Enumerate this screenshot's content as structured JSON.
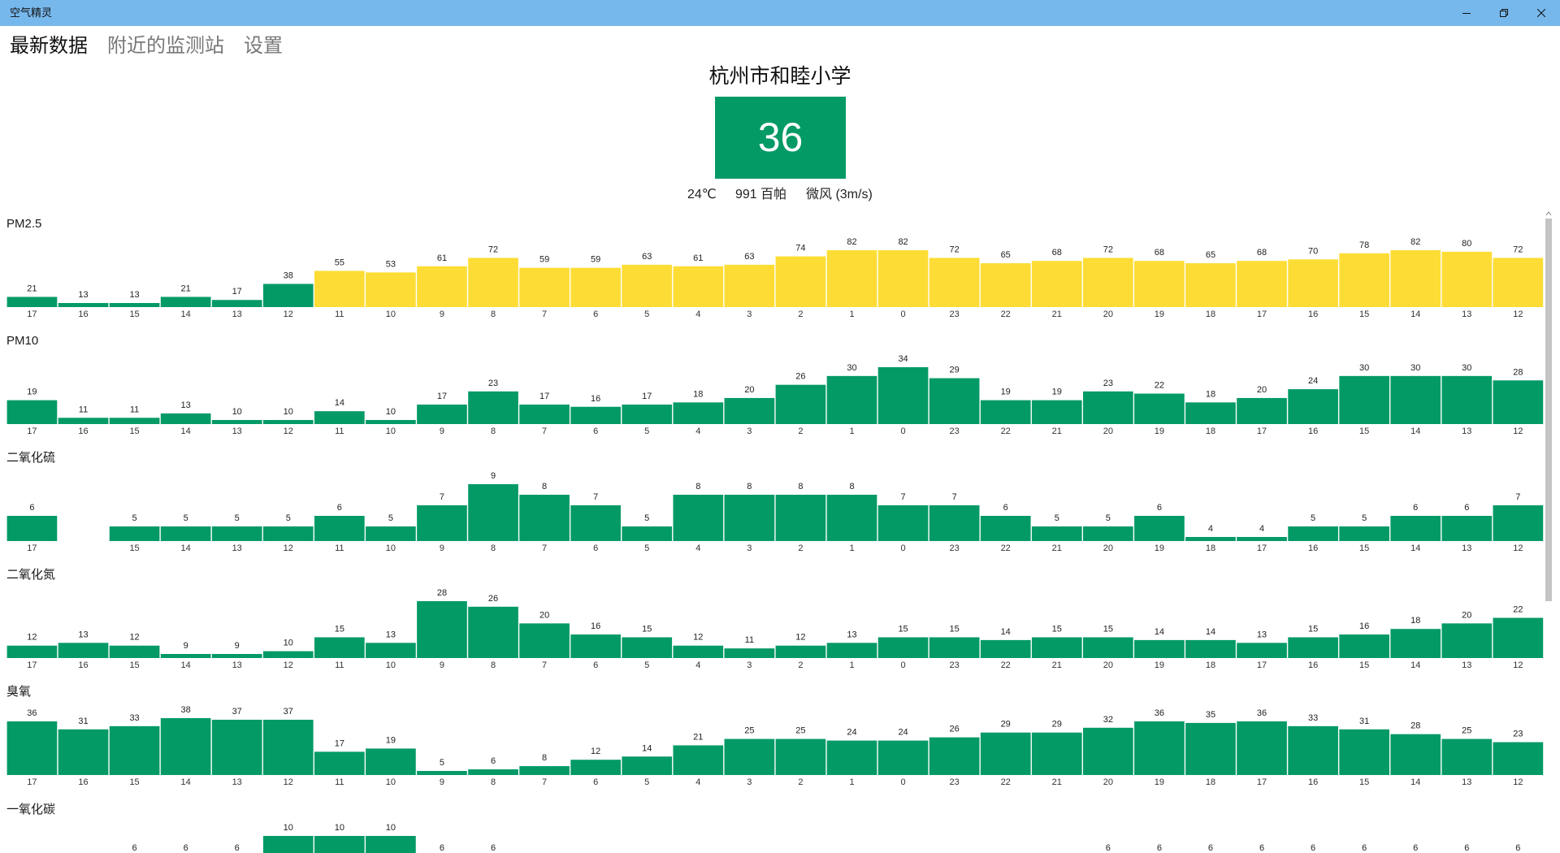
{
  "window": {
    "title": "空气精灵",
    "controls": {
      "minimize": "minimize-icon",
      "restore": "restore-icon",
      "close": "close-icon"
    },
    "titlebar_color": "#77b8ec"
  },
  "tabs": [
    {
      "label": "最新数据",
      "active": true
    },
    {
      "label": "附近的监测站",
      "active": false
    },
    {
      "label": "设置",
      "active": false
    }
  ],
  "station": {
    "name": "杭州市和睦小学",
    "aqi": 36,
    "aqi_color": "#049a66",
    "temperature": "24℃",
    "pressure": "991 百帕",
    "wind": "微风 (3m/s)"
  },
  "colors": {
    "good": "#049a66",
    "moderate": "#fddd35"
  },
  "chart_data": [
    {
      "type": "bar",
      "title": "PM2.5",
      "categories": [
        "17",
        "16",
        "15",
        "14",
        "13",
        "12",
        "11",
        "10",
        "9",
        "8",
        "7",
        "6",
        "5",
        "4",
        "3",
        "2",
        "1",
        "0",
        "23",
        "22",
        "21",
        "20",
        "19",
        "18",
        "17",
        "16",
        "15",
        "14",
        "13",
        "12"
      ],
      "values": [
        21,
        13,
        13,
        21,
        17,
        38,
        55,
        53,
        61,
        72,
        59,
        59,
        63,
        61,
        63,
        74,
        82,
        82,
        72,
        65,
        68,
        72,
        68,
        65,
        68,
        70,
        78,
        82,
        80,
        72
      ],
      "color": "#049a66",
      "bar_colors": [
        "#049a66",
        "#049a66",
        "#049a66",
        "#049a66",
        "#049a66",
        "#049a66",
        "#fddd35",
        "#fddd35",
        "#fddd35",
        "#fddd35",
        "#fddd35",
        "#fddd35",
        "#fddd35",
        "#fddd35",
        "#fddd35",
        "#fddd35",
        "#fddd35",
        "#fddd35",
        "#fddd35",
        "#fddd35",
        "#fddd35",
        "#fddd35",
        "#fddd35",
        "#fddd35",
        "#fddd35",
        "#fddd35",
        "#fddd35",
        "#fddd35",
        "#fddd35",
        "#fddd35"
      ]
    },
    {
      "type": "bar",
      "title": "PM10",
      "categories": [
        "17",
        "16",
        "15",
        "14",
        "13",
        "12",
        "11",
        "10",
        "9",
        "8",
        "7",
        "6",
        "5",
        "4",
        "3",
        "2",
        "1",
        "0",
        "23",
        "22",
        "21",
        "20",
        "19",
        "18",
        "17",
        "16",
        "15",
        "14",
        "13",
        "12"
      ],
      "values": [
        19,
        11,
        11,
        13,
        10,
        10,
        14,
        10,
        17,
        23,
        17,
        16,
        17,
        18,
        20,
        26,
        30,
        34,
        29,
        19,
        19,
        23,
        22,
        18,
        20,
        24,
        30,
        30,
        30,
        28
      ],
      "color": "#049a66"
    },
    {
      "type": "bar",
      "title": "二氧化硫",
      "categories": [
        "17",
        null,
        "15",
        "14",
        "13",
        "12",
        "11",
        "10",
        "9",
        "8",
        "7",
        "6",
        "5",
        "4",
        "3",
        "2",
        "1",
        "0",
        "23",
        "22",
        "21",
        "20",
        "19",
        "18",
        "17",
        "16",
        "15",
        "14",
        "13",
        "12"
      ],
      "values": [
        6,
        null,
        5,
        5,
        5,
        5,
        6,
        5,
        7,
        9,
        8,
        7,
        5,
        8,
        8,
        8,
        8,
        7,
        7,
        6,
        5,
        5,
        6,
        4,
        4,
        5,
        5,
        6,
        6,
        7
      ],
      "color": "#049a66"
    },
    {
      "type": "bar",
      "title": "二氧化氮",
      "categories": [
        "17",
        "16",
        "15",
        "14",
        "13",
        "12",
        "11",
        "10",
        "9",
        "8",
        "7",
        "6",
        "5",
        "4",
        "3",
        "2",
        "1",
        "0",
        "23",
        "22",
        "21",
        "20",
        "19",
        "18",
        "17",
        "16",
        "15",
        "14",
        "13",
        "12"
      ],
      "values": [
        12,
        13,
        12,
        9,
        9,
        10,
        15,
        13,
        28,
        26,
        20,
        16,
        15,
        12,
        11,
        12,
        13,
        15,
        15,
        14,
        15,
        15,
        14,
        14,
        13,
        15,
        16,
        18,
        20,
        22
      ],
      "color": "#049a66"
    },
    {
      "type": "bar",
      "title": "臭氧",
      "categories": [
        "17",
        "16",
        "15",
        "14",
        "13",
        "12",
        "11",
        "10",
        "9",
        "8",
        "7",
        "6",
        "5",
        "4",
        "3",
        "2",
        "1",
        "0",
        "23",
        "22",
        "21",
        "20",
        "19",
        "18",
        "17",
        "16",
        "15",
        "14",
        "13",
        "12"
      ],
      "values": [
        36,
        31,
        33,
        38,
        37,
        37,
        17,
        19,
        5,
        6,
        8,
        12,
        14,
        21,
        25,
        25,
        24,
        24,
        26,
        29,
        29,
        32,
        36,
        35,
        36,
        33,
        31,
        28,
        25,
        23
      ],
      "color": "#049a66"
    },
    {
      "type": "bar",
      "title": "一氧化碳",
      "values": [
        null,
        null,
        6,
        6,
        6,
        10,
        10,
        10,
        6,
        6,
        null,
        null,
        null,
        null,
        null,
        null,
        null,
        null,
        null,
        null,
        null,
        6,
        6,
        6,
        6,
        6,
        6,
        6,
        6,
        6
      ],
      "yrange": [
        0,
        10
      ],
      "color": "#049a66"
    }
  ]
}
